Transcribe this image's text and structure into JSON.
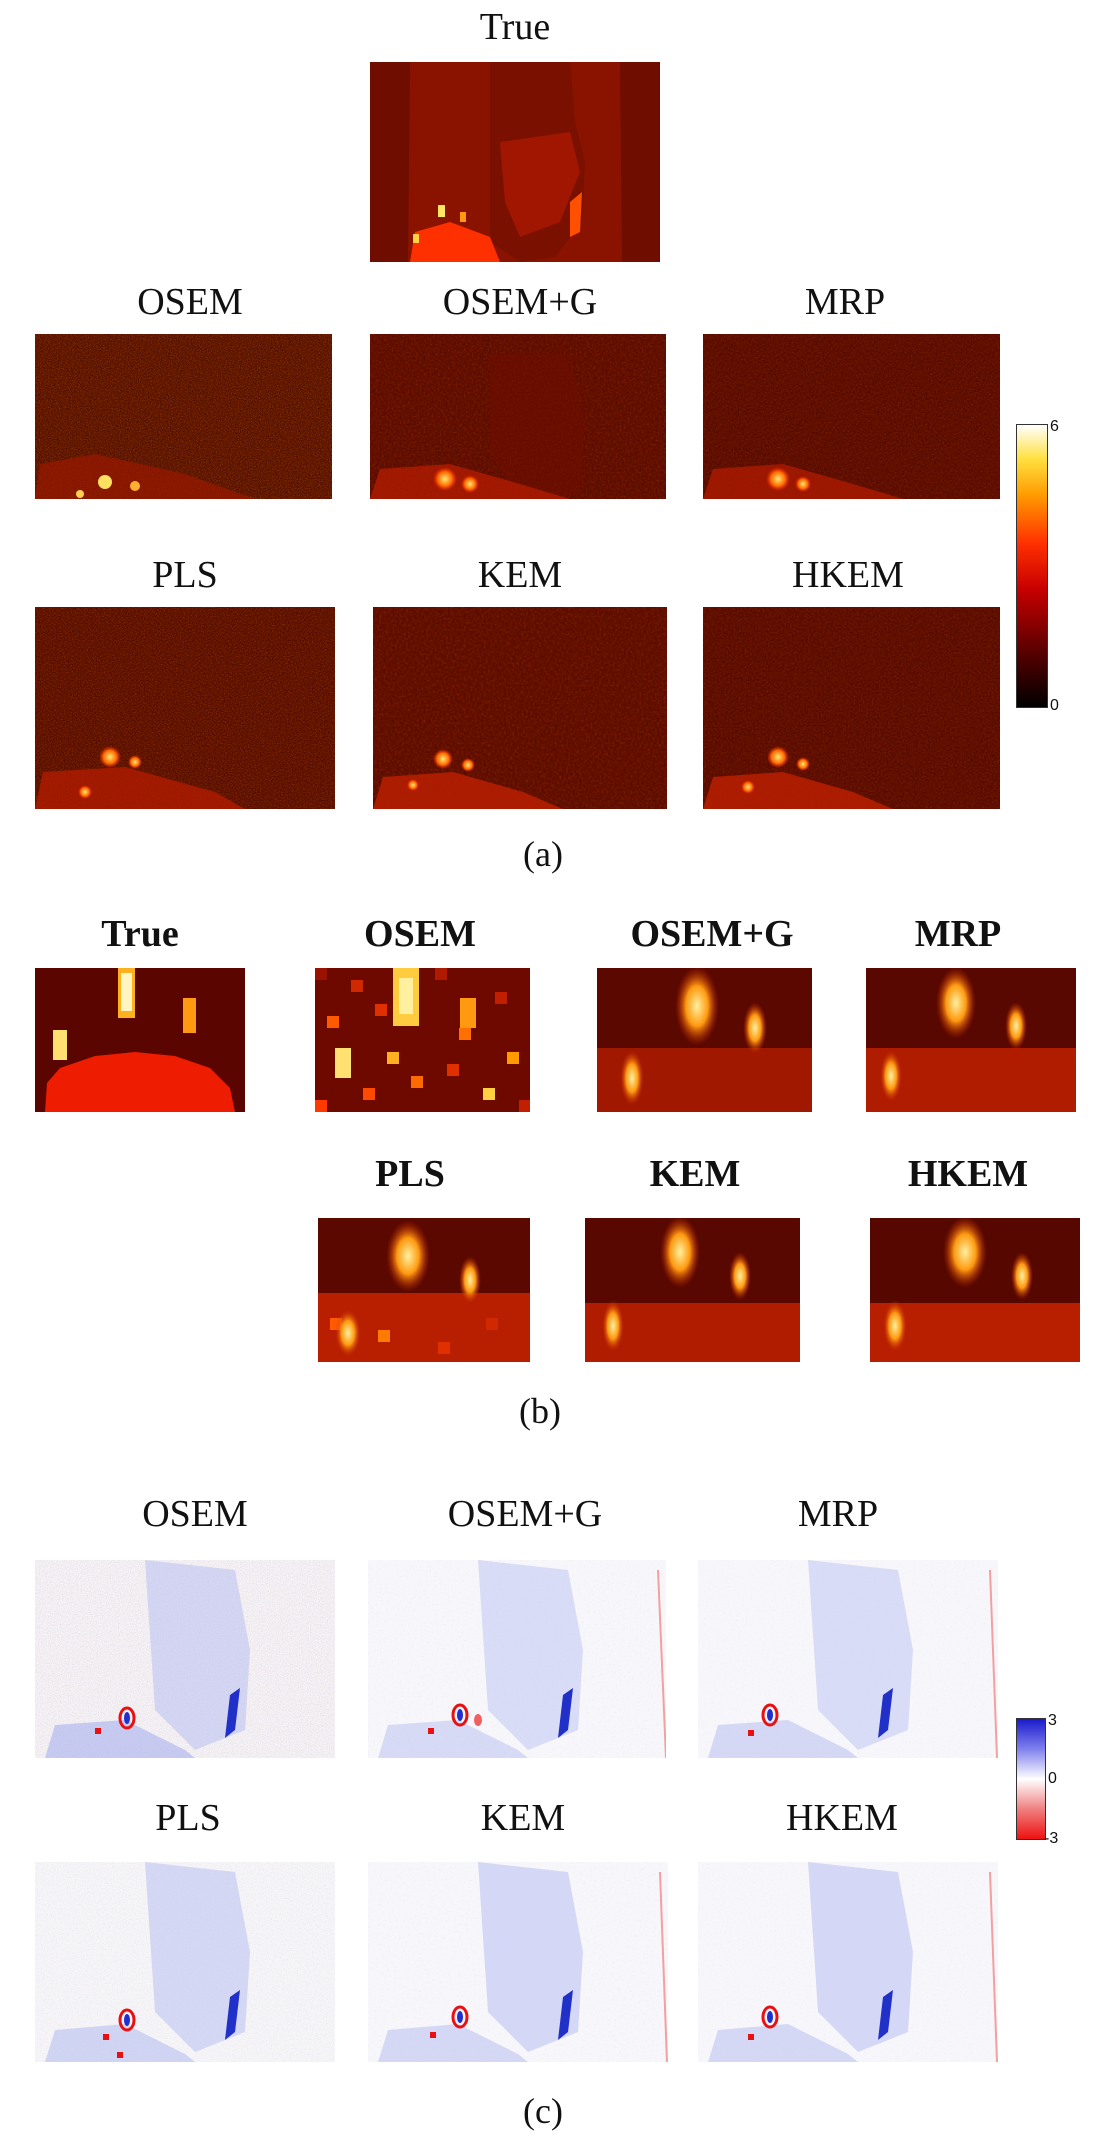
{
  "section_a": {
    "caption": "(a)",
    "true_label": "True",
    "row1_labels": [
      "OSEM",
      "OSEM+G",
      "MRP"
    ],
    "row2_labels": [
      "PLS",
      "KEM",
      "HKEM"
    ],
    "colorbar": {
      "max": "6",
      "min": "0"
    }
  },
  "section_b": {
    "caption": "(b)",
    "row1_labels": [
      "True",
      "OSEM",
      "OSEM+G",
      "MRP"
    ],
    "row2_labels": [
      "PLS",
      "KEM",
      "HKEM"
    ]
  },
  "section_c": {
    "caption": "(c)",
    "row1_labels": [
      "OSEM",
      "OSEM+G",
      "MRP"
    ],
    "row2_labels": [
      "PLS",
      "KEM",
      "HKEM"
    ],
    "colorbar": {
      "max": "3",
      "mid": "0",
      "min": "-3"
    }
  },
  "colors": {
    "hot_dark": "#3a0000",
    "hot_mid": "#9a1400",
    "hot_bright": "#ff2200",
    "hot_yellow": "#ffe040",
    "diff_blue": "#1a1acc",
    "diff_red": "#ee1111"
  }
}
